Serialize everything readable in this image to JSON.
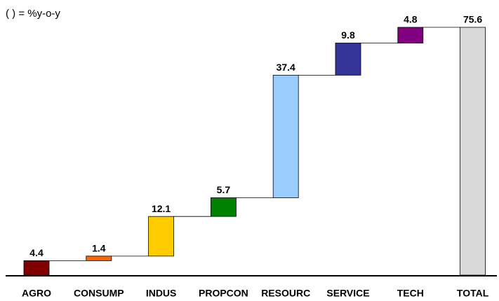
{
  "chart_data": {
    "type": "waterfall",
    "note": "( ) = %y-o-y",
    "categories": [
      "AGRO",
      "CONSUMP",
      "INDUS",
      "PROPCON",
      "RESOURC",
      "SERVICE",
      "TECH"
    ],
    "values": [
      4.4,
      1.4,
      12.1,
      5.7,
      37.4,
      9.8,
      4.8
    ],
    "colors": [
      "#800000",
      "#ff6600",
      "#ffcc00",
      "#008000",
      "#99ccff",
      "#333399",
      "#800080"
    ],
    "total": {
      "category": "TOTAL",
      "value": 75.6,
      "color": "#d9d9d9"
    }
  }
}
